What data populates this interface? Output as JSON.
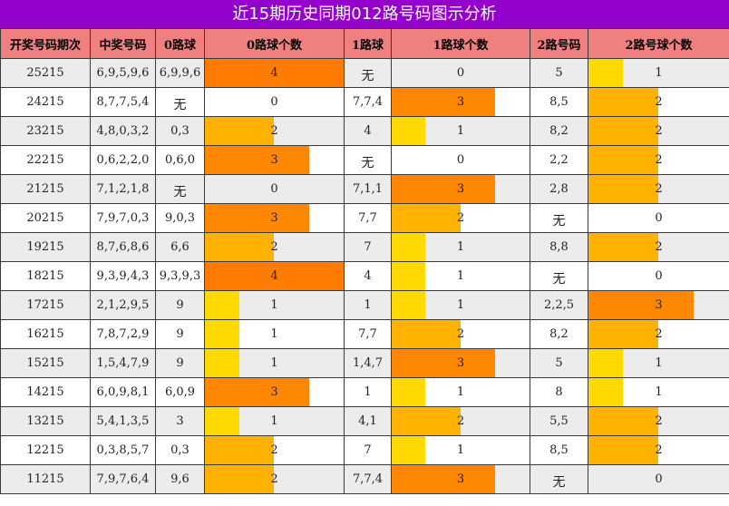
{
  "title": "近15期历史同期012路号码图示分析",
  "headers": [
    "开奖号码期次",
    "中奖号码",
    "0路球",
    "0路球个数",
    "1路球",
    "1路球个数",
    "2路号码",
    "2路号球个数"
  ],
  "colors": {
    "title_bg": "#9400cc",
    "header_bg": "#f08080",
    "level_1": "#ffd900",
    "level_2": "#ffb300",
    "level_3": "#ff8800",
    "level_4": "#ff7c00"
  },
  "none_text": "无",
  "rows": [
    {
      "issue": "25215",
      "numbers": "6,9,5,9,6",
      "r0": "6,9,9,6",
      "c0": 4,
      "r1": "无",
      "c1": 0,
      "r2": "5",
      "c2": 1
    },
    {
      "issue": "24215",
      "numbers": "8,7,7,5,4",
      "r0": "无",
      "c0": 0,
      "r1": "7,7,4",
      "c1": 3,
      "r2": "8,5",
      "c2": 2
    },
    {
      "issue": "23215",
      "numbers": "4,8,0,3,2",
      "r0": "0,3",
      "c0": 2,
      "r1": "4",
      "c1": 1,
      "r2": "8,2",
      "c2": 2
    },
    {
      "issue": "22215",
      "numbers": "0,6,2,2,0",
      "r0": "0,6,0",
      "c0": 3,
      "r1": "无",
      "c1": 0,
      "r2": "2,2",
      "c2": 2
    },
    {
      "issue": "21215",
      "numbers": "7,1,2,1,8",
      "r0": "无",
      "c0": 0,
      "r1": "7,1,1",
      "c1": 3,
      "r2": "2,8",
      "c2": 2
    },
    {
      "issue": "20215",
      "numbers": "7,9,7,0,3",
      "r0": "9,0,3",
      "c0": 3,
      "r1": "7,7",
      "c1": 2,
      "r2": "无",
      "c2": 0
    },
    {
      "issue": "19215",
      "numbers": "8,7,6,8,6",
      "r0": "6,6",
      "c0": 2,
      "r1": "7",
      "c1": 1,
      "r2": "8,8",
      "c2": 2
    },
    {
      "issue": "18215",
      "numbers": "9,3,9,4,3",
      "r0": "9,3,9,3",
      "c0": 4,
      "r1": "4",
      "c1": 1,
      "r2": "无",
      "c2": 0
    },
    {
      "issue": "17215",
      "numbers": "2,1,2,9,5",
      "r0": "9",
      "c0": 1,
      "r1": "1",
      "c1": 1,
      "r2": "2,2,5",
      "c2": 3
    },
    {
      "issue": "16215",
      "numbers": "7,8,7,2,9",
      "r0": "9",
      "c0": 1,
      "r1": "7,7",
      "c1": 2,
      "r2": "8,2",
      "c2": 2
    },
    {
      "issue": "15215",
      "numbers": "1,5,4,7,9",
      "r0": "9",
      "c0": 1,
      "r1": "1,4,7",
      "c1": 3,
      "r2": "5",
      "c2": 1
    },
    {
      "issue": "14215",
      "numbers": "6,0,9,8,1",
      "r0": "6,0,9",
      "c0": 3,
      "r1": "1",
      "c1": 1,
      "r2": "8",
      "c2": 1
    },
    {
      "issue": "13215",
      "numbers": "5,4,1,3,5",
      "r0": "3",
      "c0": 1,
      "r1": "4,1",
      "c1": 2,
      "r2": "5,5",
      "c2": 2
    },
    {
      "issue": "12215",
      "numbers": "0,3,8,5,7",
      "r0": "0,3",
      "c0": 2,
      "r1": "7",
      "c1": 1,
      "r2": "8,5",
      "c2": 2
    },
    {
      "issue": "11215",
      "numbers": "7,9,7,6,4",
      "r0": "9,6",
      "c0": 2,
      "r1": "7,7,4",
      "c1": 3,
      "r2": "无",
      "c2": 0
    }
  ]
}
